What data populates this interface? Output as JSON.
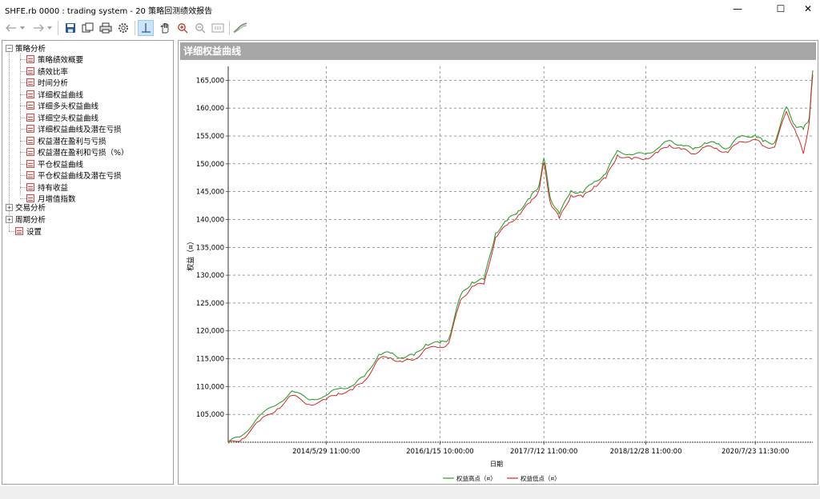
{
  "window": {
    "title": "SHFE.rb 0000 : trading system - 20 策略回测绩效报告",
    "minimize_glyph": "—",
    "maximize_glyph": "☐",
    "close_glyph": "✕"
  },
  "toolbar": {
    "buttons": [
      {
        "name": "back-arrow-icon"
      },
      {
        "name": "back-dropdown-icon"
      },
      {
        "name": "forward-arrow-icon"
      },
      {
        "name": "forward-dropdown-icon"
      },
      {
        "name": "save-icon"
      },
      {
        "name": "copy-icon"
      },
      {
        "name": "print-icon"
      },
      {
        "name": "settings-gear-icon"
      },
      {
        "name": "crosshair-icon"
      },
      {
        "name": "pan-hand-icon"
      },
      {
        "name": "zoom-in-icon"
      },
      {
        "name": "zoom-out-icon"
      },
      {
        "name": "reset-zoom-icon"
      },
      {
        "name": "chart-style-icon"
      }
    ]
  },
  "tree": {
    "root_label": "策略分析",
    "strategy_items": [
      "策略绩效概要",
      "绩效比率",
      "时间分析",
      "详细权益曲线",
      "详细多头权益曲线",
      "详细空头权益曲线",
      "详细权益曲线及潜在亏损",
      "权益潜在盈利与亏损",
      "权益潜在盈利和亏损（%）",
      "平仓权益曲线",
      "平仓权益曲线及潜在亏损",
      "持有收益",
      "月增值指数"
    ],
    "selected_index": 3,
    "other_nodes": [
      "交易分析",
      "周期分析"
    ],
    "settings_label": "设置",
    "expanded_glyph": "−",
    "collapsed_glyph": "+"
  },
  "panel": {
    "header": "详细权益曲线"
  },
  "chart_data": {
    "type": "line",
    "title": "详细权益曲线",
    "xlabel": "日期",
    "ylabel": "权益（¤）",
    "ylim": [
      100000,
      167500
    ],
    "yticks": [
      105000,
      110000,
      115000,
      120000,
      125000,
      130000,
      135000,
      140000,
      145000,
      150000,
      155000,
      160000,
      165000
    ],
    "ytick_labels": [
      "105,000",
      "110,000",
      "115,000",
      "120,000",
      "125,000",
      "130,000",
      "135,000",
      "140,000",
      "145,000",
      "150,000",
      "155,000",
      "160,000",
      "165,000"
    ],
    "xticks": [
      "2014/5/29 11:00:00",
      "2016/1/15 10:00:00",
      "2017/7/12 11:00:00",
      "2018/12/28 11:00:00",
      "2020/7/23 11:30:00"
    ],
    "x": [
      "2013/1/1",
      "2013/3/15",
      "2013/6/15",
      "2013/9/15",
      "2013/12/1",
      "2014/3/1",
      "2014/5/29",
      "2014/8/1",
      "2014/10/15",
      "2014/12/15",
      "2015/3/1",
      "2015/5/1",
      "2015/7/1",
      "2015/9/1",
      "2015/11/1",
      "2016/1/15",
      "2016/3/1",
      "2016/5/1",
      "2016/7/1",
      "2016/9/1",
      "2016/11/1",
      "2017/1/1",
      "2017/3/1",
      "2017/5/1",
      "2017/6/15",
      "2017/7/12",
      "2017/8/15",
      "2017/10/1",
      "2017/12/1",
      "2018/2/1",
      "2018/4/1",
      "2018/6/1",
      "2018/8/1",
      "2018/10/15",
      "2018/12/28",
      "2019/3/1",
      "2019/5/1",
      "2019/7/1",
      "2019/9/1",
      "2019/11/1",
      "2020/1/1",
      "2020/3/1",
      "2020/5/1",
      "2020/7/23",
      "2020/9/1",
      "2020/11/1",
      "2021/1/1",
      "2021/2/15",
      "2021/4/1",
      "2021/5/1",
      "2021/5/20"
    ],
    "series": [
      {
        "name": "权益高点（¤）",
        "color": "#2ca02c",
        "values": [
          100000,
          101200,
          104800,
          106800,
          109200,
          107600,
          108400,
          109600,
          110200,
          111800,
          115800,
          116000,
          115200,
          115600,
          117600,
          117800,
          118600,
          126300,
          128800,
          129200,
          137600,
          139800,
          141600,
          143800,
          146000,
          151000,
          143800,
          141000,
          145200,
          144800,
          146800,
          148200,
          152400,
          151600,
          151800,
          152800,
          154200,
          153400,
          152600,
          153800,
          153600,
          152800,
          154800,
          155200,
          154000,
          153800,
          160200,
          157000,
          156200,
          158200,
          166800
        ]
      },
      {
        "name": "权益低点（¤）",
        "color": "#d62728",
        "values": [
          99800,
          100600,
          103800,
          106000,
          108400,
          106800,
          107600,
          108800,
          109400,
          111000,
          115000,
          115200,
          114400,
          114800,
          116800,
          117000,
          117800,
          125500,
          128000,
          128400,
          136800,
          139000,
          140800,
          143000,
          145200,
          150200,
          143000,
          140200,
          144400,
          144000,
          146000,
          147400,
          151600,
          150800,
          151000,
          152000,
          153400,
          152600,
          151800,
          153000,
          152800,
          152000,
          154000,
          154400,
          153200,
          153000,
          159400,
          156200,
          151800,
          157400,
          166000
        ]
      }
    ],
    "grid": true,
    "legend": "bottom"
  }
}
